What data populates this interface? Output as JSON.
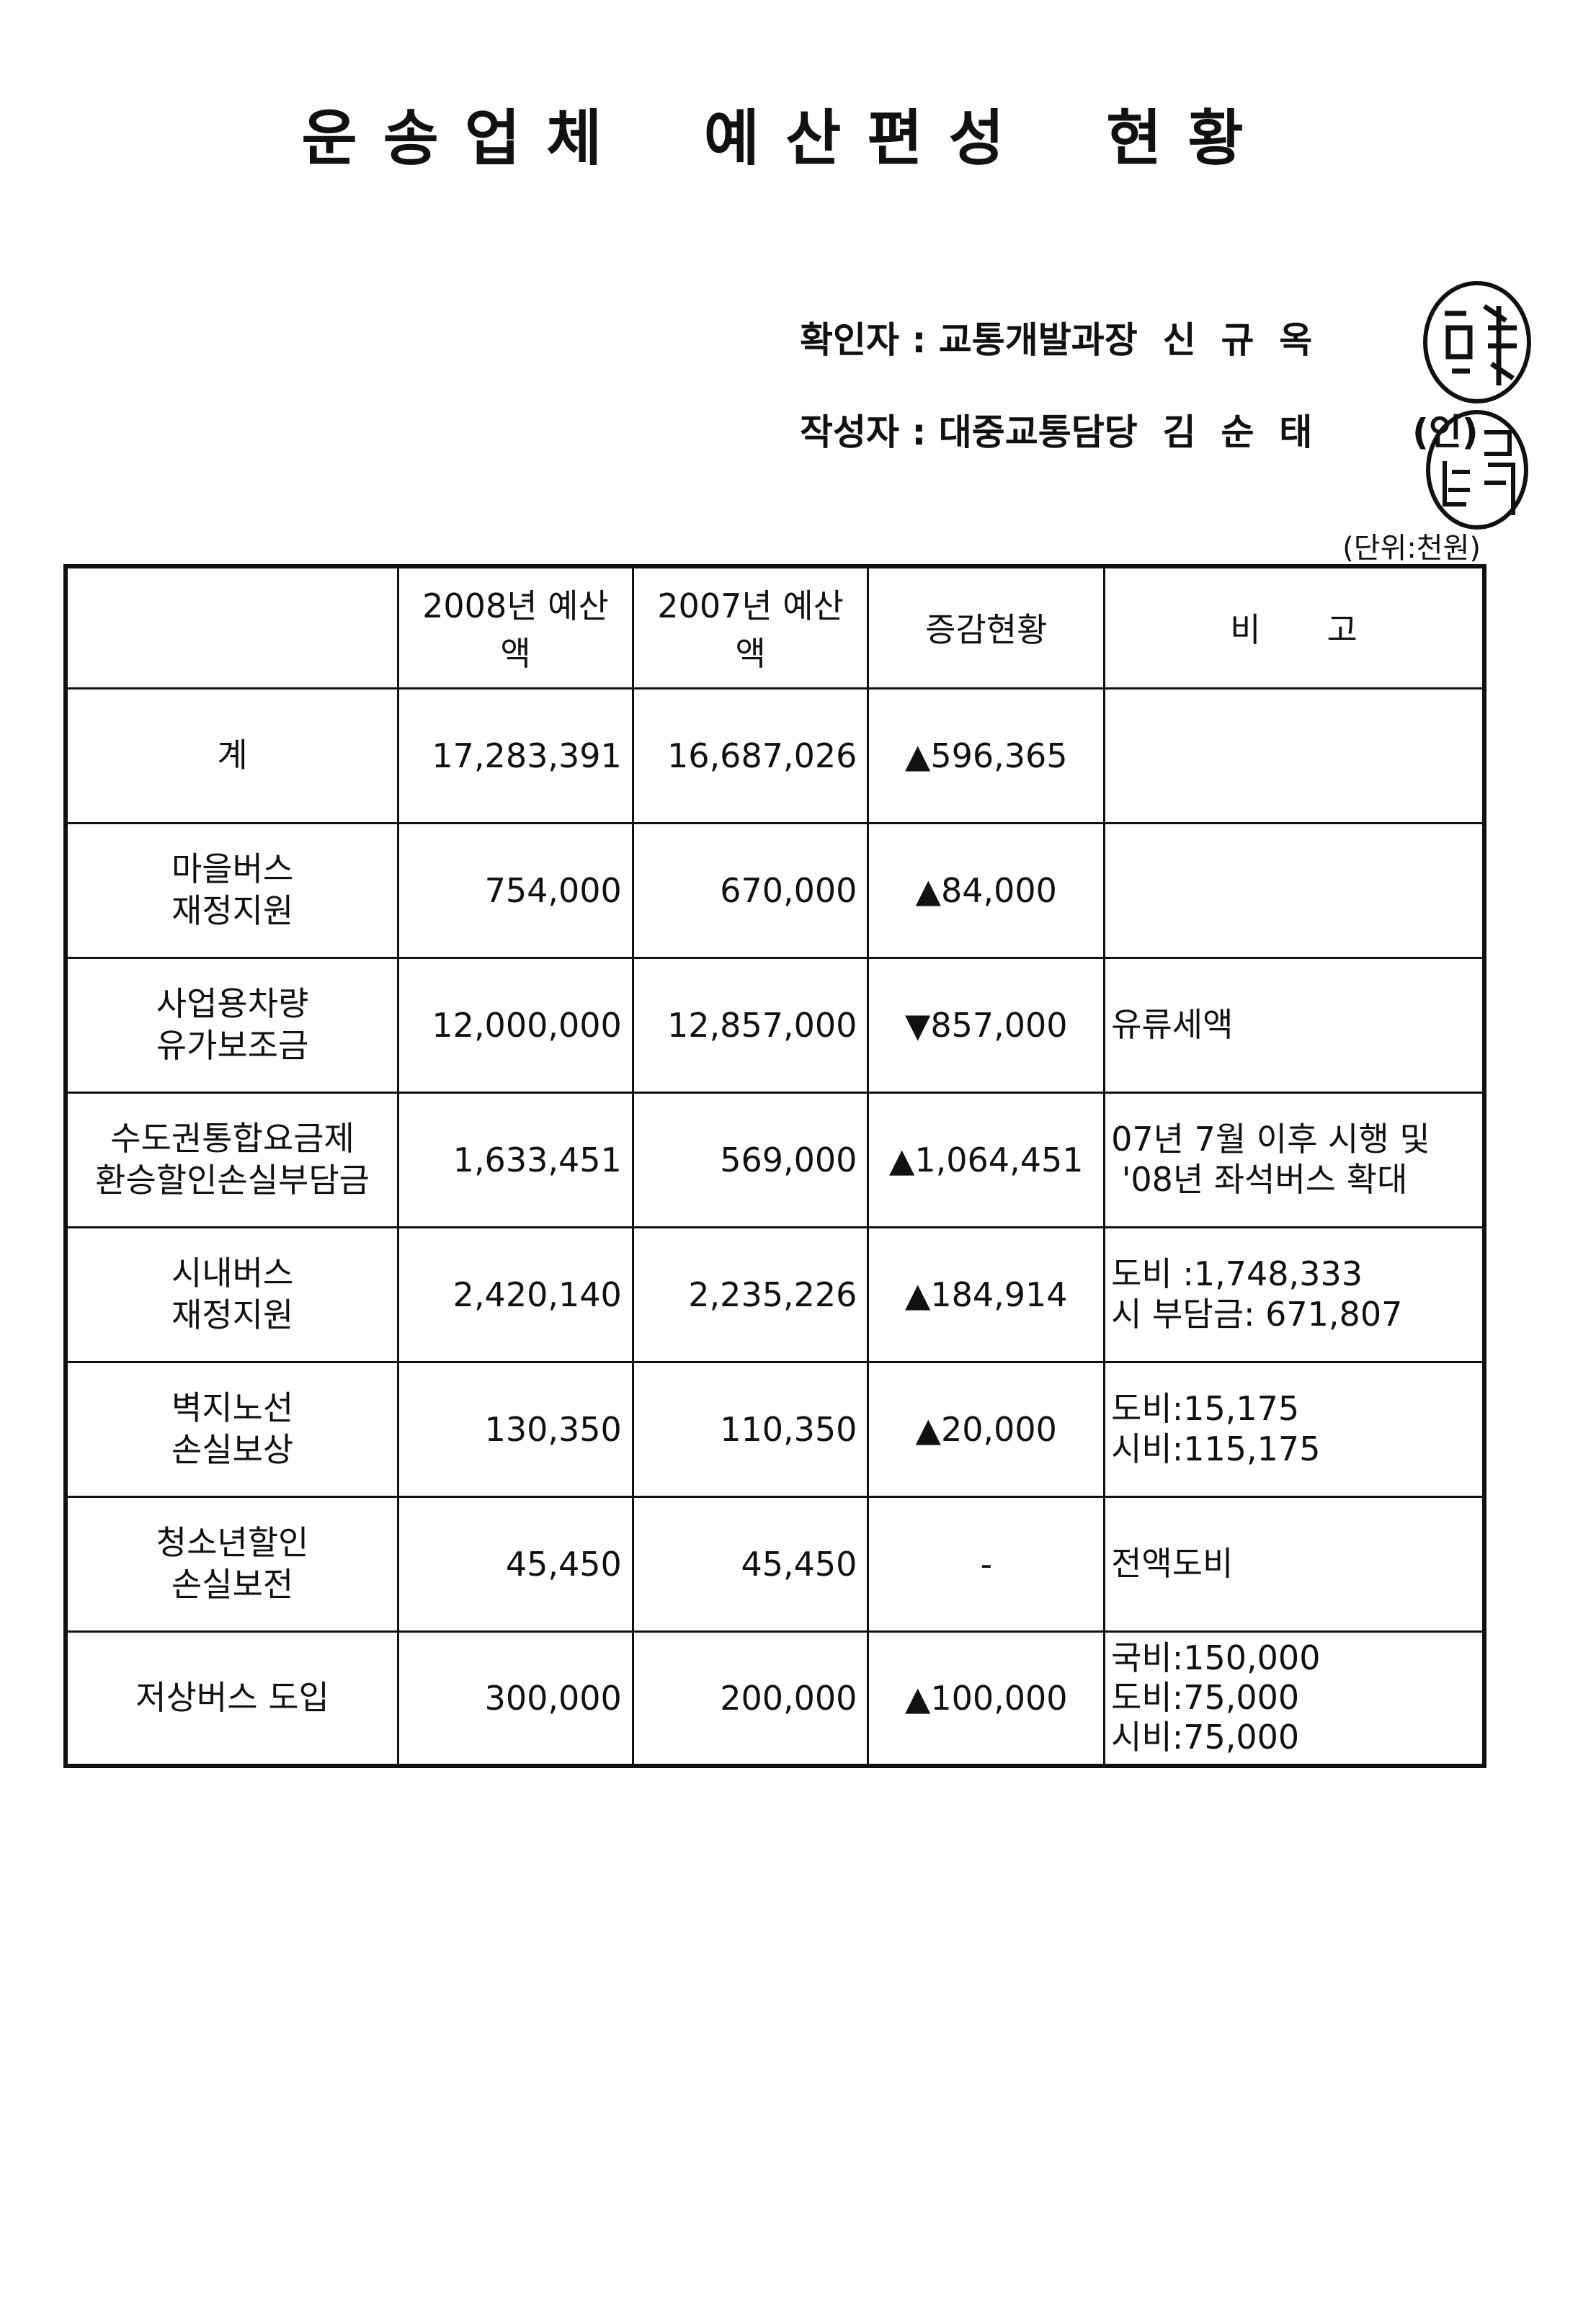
{
  "title": "운송업체 예산편성 현황",
  "signatures": {
    "confirmer": "확인자 : 교통개발과장  신  규  옥",
    "author": "작성자 : 대중교통담당  김  순  태",
    "seal_mark": "(인)"
  },
  "unit": "(단위:천원)",
  "table": {
    "headers": [
      "",
      "2008년 예산액",
      "2007년 예산액",
      "증감현황",
      "비　　고"
    ],
    "rows": [
      {
        "label": [
          "계"
        ],
        "y2008": "17,283,391",
        "y2007": "16,687,026",
        "change": "▲596,365",
        "note": []
      },
      {
        "label": [
          "마을버스",
          "재정지원"
        ],
        "y2008": "754,000",
        "y2007": "670,000",
        "change": "▲84,000",
        "note": []
      },
      {
        "label": [
          "사업용차량",
          "유가보조금"
        ],
        "y2008": "12,000,000",
        "y2007": "12,857,000",
        "change": "▼857,000",
        "note": [
          "유류세액"
        ]
      },
      {
        "label": [
          "수도권통합요금제",
          "환승할인손실부담금"
        ],
        "y2008": "1,633,451",
        "y2007": "569,000",
        "change": "▲1,064,451",
        "note": [
          "07년 7월 이후 시행 및",
          " '08년 좌석버스 확대"
        ]
      },
      {
        "label": [
          "시내버스",
          "재정지원"
        ],
        "y2008": "2,420,140",
        "y2007": "2,235,226",
        "change": "▲184,914",
        "note": [
          "도비 :1,748,333",
          "시 부담금: 671,807"
        ]
      },
      {
        "label": [
          "벽지노선",
          "손실보상"
        ],
        "y2008": "130,350",
        "y2007": "110,350",
        "change": "▲20,000",
        "note": [
          "도비:15,175",
          "시비:115,175"
        ]
      },
      {
        "label": [
          "청소년할인",
          "손실보전"
        ],
        "y2008": "45,450",
        "y2007": "45,450",
        "change": "-",
        "note": [
          "전액도비"
        ]
      },
      {
        "label": [
          "저상버스 도입"
        ],
        "y2008": "300,000",
        "y2007": "200,000",
        "change": "▲100,000",
        "note": [
          "국비:150,000",
          "도비:75,000",
          "시비:75,000"
        ]
      }
    ]
  }
}
